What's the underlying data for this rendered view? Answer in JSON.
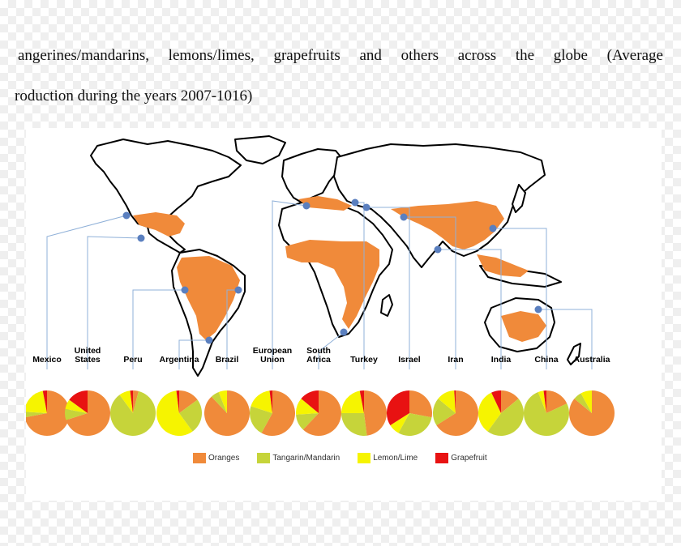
{
  "caption": {
    "line1_words": [
      "angerines/mandarins,",
      "lemons/limes,",
      "grapefruits",
      "and",
      "others",
      "across",
      "the",
      "globe",
      "(Average"
    ],
    "line2": "roduction during the years 2007-1016)"
  },
  "colors": {
    "oranges": "#f08a3a",
    "tangarin_mandarin": "#c6d43a",
    "lemon_lime": "#f6f400",
    "grapefruit": "#e81212",
    "land": "#ffffff",
    "coast": "#000000",
    "marker": "#5a7fbf",
    "leader": "#8fb0d8"
  },
  "legend": [
    {
      "key": "oranges",
      "label": "Oranges"
    },
    {
      "key": "tangarin_mandarin",
      "label": "Tangarin/Mandarin"
    },
    {
      "key": "lemon_lime",
      "label": "Lemon/Lime"
    },
    {
      "key": "grapefruit",
      "label": "Grapefruit"
    }
  ],
  "countries": [
    {
      "label": [
        "Mexico"
      ],
      "share": {
        "oranges": 0.72,
        "tangarin_mandarin": 0.04,
        "lemon_lime": 0.21,
        "grapefruit": 0.03
      }
    },
    {
      "label": [
        "United",
        "States"
      ],
      "share": {
        "oranges": 0.7,
        "tangarin_mandarin": 0.08,
        "lemon_lime": 0.07,
        "grapefruit": 0.15
      }
    },
    {
      "label": [
        "Peru"
      ],
      "share": {
        "oranges": 0.04,
        "tangarin_mandarin": 0.86,
        "lemon_lime": 0.08,
        "grapefruit": 0.02
      }
    },
    {
      "label": [
        "Argentina"
      ],
      "share": {
        "oranges": 0.15,
        "tangarin_mandarin": 0.25,
        "lemon_lime": 0.58,
        "grapefruit": 0.02
      }
    },
    {
      "label": [
        "Brazil"
      ],
      "share": {
        "oranges": 0.88,
        "tangarin_mandarin": 0.06,
        "lemon_lime": 0.06,
        "grapefruit": 0.0
      }
    },
    {
      "label": [
        "European",
        "Union"
      ],
      "share": {
        "oranges": 0.58,
        "tangarin_mandarin": 0.22,
        "lemon_lime": 0.18,
        "grapefruit": 0.02
      }
    },
    {
      "label": [
        "South",
        "Africa"
      ],
      "share": {
        "oranges": 0.62,
        "tangarin_mandarin": 0.12,
        "lemon_lime": 0.12,
        "grapefruit": 0.14
      }
    },
    {
      "label": [
        "Turkey"
      ],
      "share": {
        "oranges": 0.48,
        "tangarin_mandarin": 0.27,
        "lemon_lime": 0.22,
        "grapefruit": 0.03
      }
    },
    {
      "label": [
        "Israel"
      ],
      "share": {
        "oranges": 0.28,
        "tangarin_mandarin": 0.3,
        "lemon_lime": 0.08,
        "grapefruit": 0.34
      }
    },
    {
      "label": [
        "Iran"
      ],
      "share": {
        "oranges": 0.66,
        "tangarin_mandarin": 0.2,
        "lemon_lime": 0.13,
        "grapefruit": 0.01
      }
    },
    {
      "label": [
        "India"
      ],
      "share": {
        "oranges": 0.14,
        "tangarin_mandarin": 0.46,
        "lemon_lime": 0.33,
        "grapefruit": 0.07
      }
    },
    {
      "label": [
        "China"
      ],
      "share": {
        "oranges": 0.18,
        "tangarin_mandarin": 0.76,
        "lemon_lime": 0.04,
        "grapefruit": 0.02
      }
    },
    {
      "label": [
        "Australia"
      ],
      "share": {
        "oranges": 0.86,
        "tangarin_mandarin": 0.06,
        "lemon_lime": 0.08,
        "grapefruit": 0.0
      }
    }
  ]
}
